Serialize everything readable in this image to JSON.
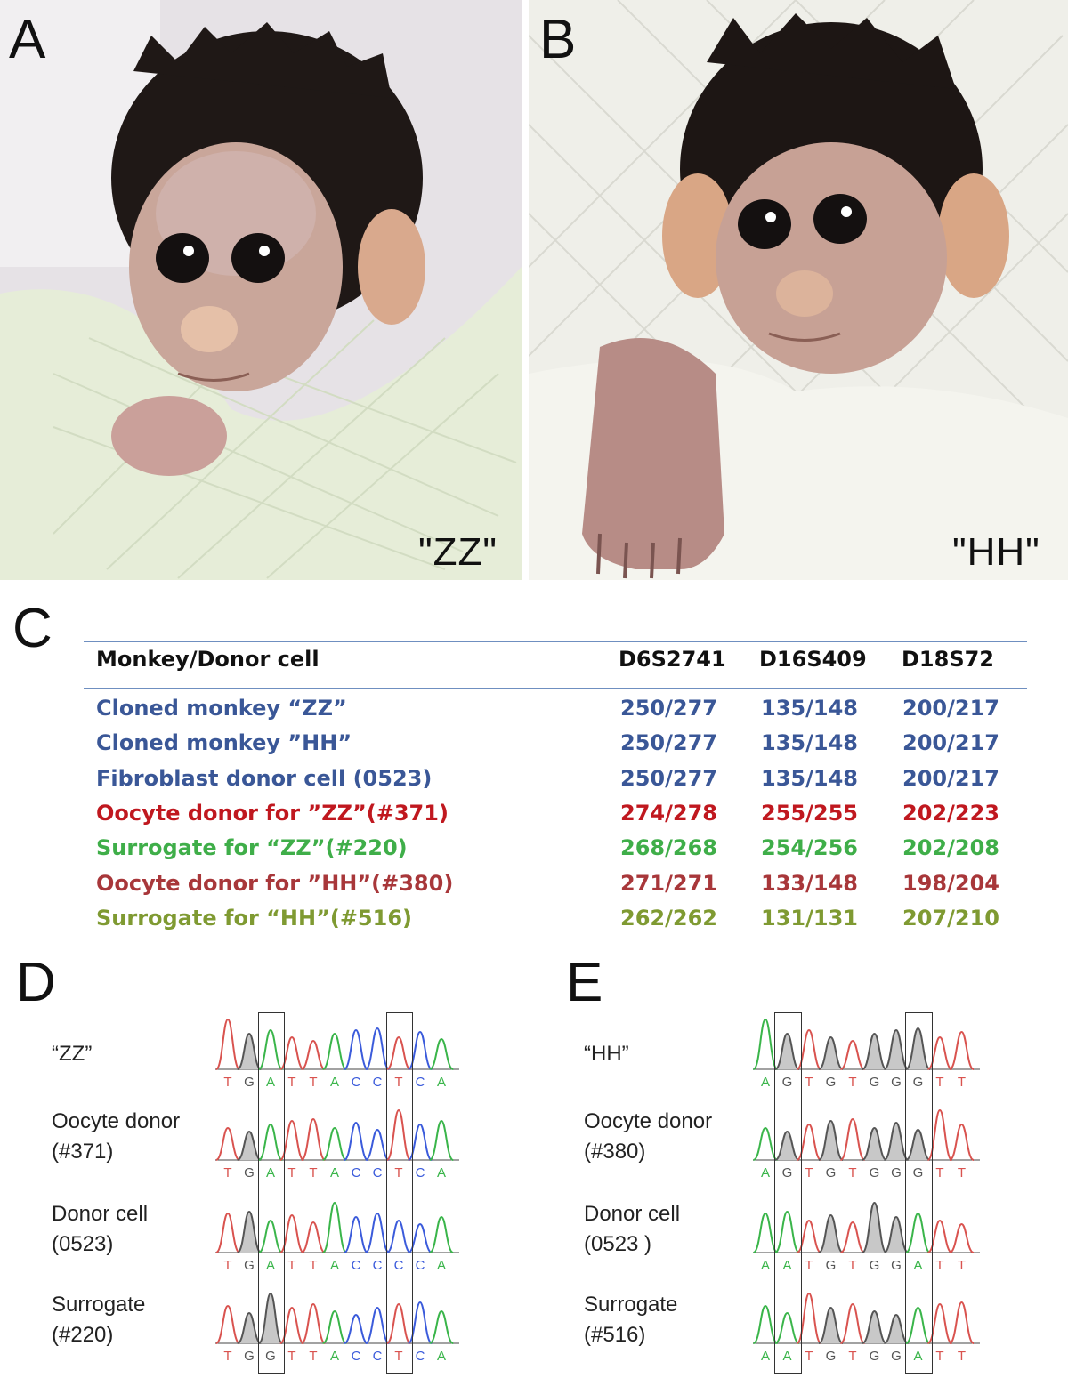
{
  "panels": {
    "a": {
      "letter": "A",
      "caption": "\"ZZ\""
    },
    "b": {
      "letter": "B",
      "caption": "\"HH\""
    },
    "c": {
      "letter": "C"
    },
    "d": {
      "letter": "D"
    },
    "e": {
      "letter": "E"
    }
  },
  "table": {
    "headers": [
      "Monkey/Donor cell",
      "D6S2741",
      "D16S409",
      "D18S72"
    ],
    "rows": [
      {
        "name": "Cloned monkey “ZZ”",
        "v1": "250/277",
        "v2": "135/148",
        "v3": "200/217",
        "color": "#3a5797"
      },
      {
        "name": "Cloned monkey ”HH”",
        "v1": "250/277",
        "v2": "135/148",
        "v3": "200/217",
        "color": "#3a5797"
      },
      {
        "name": "Fibroblast  donor cell (0523)",
        "v1": "250/277",
        "v2": "135/148",
        "v3": "200/217",
        "color": "#3a5797"
      },
      {
        "name": "Oocyte donor for ”ZZ”(#371)",
        "v1": "274/278",
        "v2": "255/255",
        "v3": "202/223",
        "color": "#c0181f"
      },
      {
        "name": "Surrogate for “ZZ”(#220)",
        "v1": "268/268",
        "v2": "254/256",
        "v3": "202/208",
        "color": "#3fae49"
      },
      {
        "name": "Oocyte donor for ”HH”(#380)",
        "v1": "271/271",
        "v2": "133/148",
        "v3": "198/204",
        "color": "#a8373a"
      },
      {
        "name": "Surrogate for “HH”(#516)",
        "v1": "262/262",
        "v2": "131/131",
        "v3": "207/210",
        "color": "#7f9a32"
      }
    ]
  },
  "chromatograms": {
    "d": {
      "sequence": "TGATTACCTCA",
      "tracks": [
        {
          "label": "“ZZ”",
          "bases": [
            "T",
            "G",
            "A",
            "T",
            "T",
            "A",
            "C",
            "C",
            "T",
            "C",
            "A"
          ]
        },
        {
          "label": "Oocyte donor\n(#371)",
          "bases": [
            "T",
            "G",
            "A",
            "T",
            "T",
            "A",
            "C",
            "C",
            "T",
            "C",
            "A"
          ]
        },
        {
          "label": "Donor cell\n(0523)",
          "bases": [
            "T",
            "G",
            "A",
            "T",
            "T",
            "A",
            "C",
            "C",
            "C",
            "C",
            "A"
          ]
        },
        {
          "label": "Surrogate\n(#220)",
          "bases": [
            "T",
            "G",
            "G",
            "T",
            "T",
            "A",
            "C",
            "C",
            "T",
            "C",
            "A"
          ]
        }
      ],
      "boxed_positions": [
        2,
        8
      ]
    },
    "e": {
      "tracks": [
        {
          "label": "“HH”",
          "bases": [
            "A",
            "G",
            "T",
            "G",
            "T",
            "G",
            "G",
            "G",
            "T",
            "T"
          ]
        },
        {
          "label": "Oocyte donor\n(#380)",
          "bases": [
            "A",
            "G",
            "T",
            "G",
            "T",
            "G",
            "G",
            "G",
            "T",
            "T"
          ]
        },
        {
          "label": "Donor cell\n(0523 )",
          "bases": [
            "A",
            "A",
            "T",
            "G",
            "T",
            "G",
            "G",
            "A",
            "T",
            "T"
          ]
        },
        {
          "label": "Surrogate\n(#516)",
          "bases": [
            "A",
            "A",
            "T",
            "G",
            "T",
            "G",
            "G",
            "A",
            "T",
            "T"
          ]
        }
      ],
      "boxed_positions": [
        1,
        7
      ]
    }
  },
  "colors": {
    "base_A": "#3ab54a",
    "base_T": "#d9534f",
    "base_G": "#555555",
    "base_C": "#3b5bdb",
    "peak_fill_G": "#c8c8c8"
  }
}
